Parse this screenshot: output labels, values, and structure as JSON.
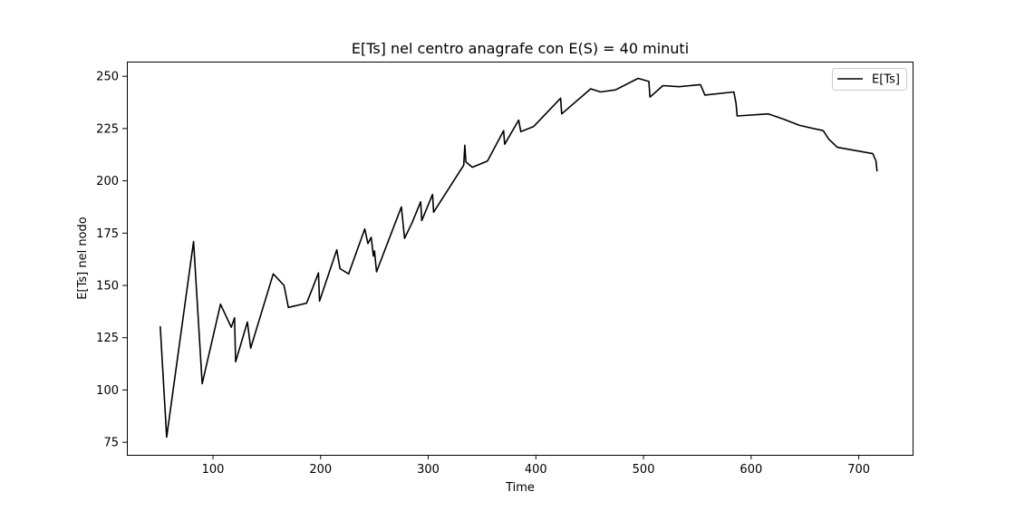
{
  "chart_data": {
    "type": "line",
    "title": "E[Ts] nel centro anagrafe con E(S) = 40 minuti",
    "xlabel": "Time",
    "ylabel": "E[Ts] nel nodo",
    "xlim": [
      20,
      750
    ],
    "ylim": [
      69,
      257
    ],
    "xticks": [
      100,
      200,
      300,
      400,
      500,
      600,
      700
    ],
    "yticks": [
      75,
      100,
      125,
      150,
      175,
      200,
      225,
      250
    ],
    "grid": false,
    "legend_position": "top-right",
    "line_color": "#000000",
    "series": [
      {
        "name": "E[Ts]",
        "x": [
          51,
          57,
          82,
          90,
          107,
          117,
          120,
          121,
          132,
          135,
          156,
          166,
          170,
          187,
          192,
          198,
          199,
          215,
          218,
          226,
          241,
          244,
          247,
          249,
          250,
          252,
          262,
          275,
          278,
          285,
          293,
          294,
          304,
          305,
          333,
          334,
          335,
          341,
          355,
          370,
          371,
          384,
          386,
          398,
          423,
          424,
          451,
          460,
          474,
          495,
          505,
          506,
          518,
          533,
          553,
          557,
          584,
          586,
          587,
          616,
          630,
          645,
          667,
          672,
          680,
          713,
          716,
          717
        ],
        "y": [
          130.5,
          77.5,
          171,
          103,
          141,
          130,
          134.5,
          113.5,
          132.5,
          120,
          155.5,
          150,
          139.5,
          141.5,
          148,
          156,
          142.5,
          167,
          158,
          155.5,
          177,
          170,
          173,
          164,
          166.5,
          156.5,
          170,
          187.5,
          172.5,
          180,
          190,
          181,
          193.5,
          185,
          207.5,
          217,
          209,
          206.5,
          209.5,
          224,
          217.5,
          229,
          223.5,
          226,
          239.5,
          232,
          244,
          242.5,
          243.5,
          249,
          247.5,
          240,
          245.5,
          245,
          246,
          241,
          242.5,
          237,
          231,
          232,
          229.5,
          226.5,
          224,
          220,
          216,
          213,
          209.5,
          204.5
        ]
      }
    ]
  }
}
